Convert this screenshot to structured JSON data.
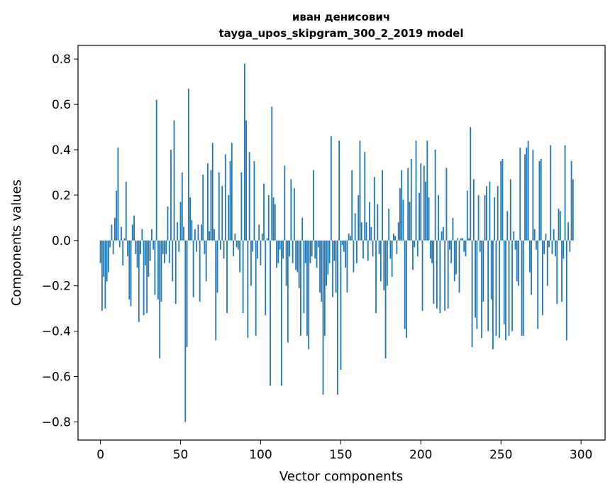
{
  "chart_data": {
    "type": "bar",
    "title_lines": [
      "иван денисович",
      "tayga_upos_skipgram_300_2_2019 model"
    ],
    "xlabel": "Vector components",
    "ylabel": "Components values",
    "xlim": [
      -14,
      315
    ],
    "ylim": [
      -0.88,
      0.86
    ],
    "xticks": [
      0,
      50,
      100,
      150,
      200,
      250,
      300
    ],
    "xtick_labels": [
      "0",
      "50",
      "100",
      "150",
      "200",
      "250",
      "300"
    ],
    "yticks": [
      0.8,
      0.6,
      0.4,
      0.2,
      0.0,
      -0.2,
      -0.4,
      -0.6,
      -0.8
    ],
    "ytick_labels": [
      "0.8",
      "0.6",
      "0.4",
      "0.2",
      "0.0",
      "−0.2",
      "−0.4",
      "−0.6",
      "−0.8"
    ],
    "grid": false,
    "bar_color": "#1f77b4",
    "values": [
      -0.1,
      -0.31,
      -0.16,
      -0.3,
      -0.18,
      -0.14,
      -0.03,
      0.07,
      -0.06,
      0.1,
      0.22,
      0.41,
      -0.03,
      0.06,
      -0.11,
      0.01,
      0.26,
      -0.07,
      -0.26,
      -0.29,
      0.07,
      0.11,
      -0.06,
      -0.12,
      -0.36,
      -0.06,
      0.05,
      -0.33,
      -0.11,
      -0.32,
      -0.16,
      -0.09,
      0.05,
      -0.04,
      -0.24,
      0.62,
      -0.26,
      -0.52,
      -0.27,
      -0.06,
      -0.1,
      -0.06,
      0.15,
      -0.1,
      0.4,
      -0.18,
      0.53,
      -0.28,
      0.08,
      -0.05,
      0.17,
      0.3,
      0.06,
      -0.8,
      -0.47,
      0.67,
      0.19,
      0.09,
      -0.25,
      0.05,
      -0.05,
      0.07,
      -0.27,
      0.07,
      0.29,
      -0.06,
      -0.18,
      0.34,
      0.04,
      0.31,
      0.43,
      0.05,
      -0.44,
      -0.23,
      0.3,
      -0.04,
      0.24,
      -0.08,
      0.38,
      -0.32,
      0.2,
      0.35,
      0.43,
      -0.07,
      0.03,
      -0.03,
      -0.04,
      -0.14,
      0.3,
      -0.32,
      0.78,
      0.53,
      -0.43,
      0.39,
      -0.2,
      -0.05,
      0.35,
      -0.42,
      -0.08,
      0.07,
      -0.11,
      0.03,
      0.25,
      -0.33,
      0.01,
      0.2,
      -0.64,
      0.59,
      0.19,
      0.16,
      -0.12,
      -0.1,
      -0.04,
      -0.64,
      -0.08,
      0.33,
      -0.2,
      -0.45,
      -0.07,
      0.27,
      -0.1,
      0.23,
      -0.13,
      -0.14,
      -0.21,
      -0.42,
      0.1,
      -0.32,
      -0.1,
      -0.42,
      -0.48,
      -0.1,
      -0.07,
      0.31,
      -0.08,
      -0.12,
      -0.03,
      -0.23,
      -0.27,
      -0.68,
      -0.42,
      -0.2,
      -0.15,
      -0.1,
      0.46,
      -0.25,
      -0.09,
      -0.23,
      -0.68,
      0.44,
      -0.57,
      -0.02,
      -0.05,
      -0.12,
      -0.23,
      0.03,
      0.02,
      0.31,
      -0.14,
      0.12,
      -0.1,
      0.2,
      0.44,
      0.08,
      -0.08,
      0.39,
      0.08,
      -0.09,
      0.17,
      0.06,
      -0.07,
      0.28,
      -0.32,
      0.16,
      -0.06,
      -0.18,
      0.31,
      -0.22,
      -0.52,
      -0.2,
      0.14,
      -0.08,
      -0.16,
      0.03,
      0.02,
      -0.06,
      0.08,
      0.23,
      0.31,
      0.18,
      -0.39,
      -0.43,
      0.32,
      0.17,
      0.36,
      -0.13,
      -0.03,
      0.44,
      -0.07,
      0.21,
      0.34,
      -0.31,
      0.33,
      0.26,
      0.44,
      0.19,
      -0.08,
      -0.1,
      -0.28,
      0.4,
      -0.3,
      0.2,
      -0.32,
      0.04,
      0.06,
      -0.31,
      0.32,
      -0.3,
      -0.04,
      -0.1,
      0.1,
      -0.18,
      -0.15,
      0.01,
      -0.23,
      0.01,
      0.01,
      -0.05,
      -0.07,
      0.22,
      0.01,
      0.5,
      -0.47,
      0.27,
      -0.34,
      -0.39,
      0.2,
      -0.05,
      -0.43,
      -0.27,
      0.2,
      0.24,
      -0.4,
      0.26,
      -0.26,
      -0.48,
      0.19,
      -0.42,
      0.24,
      -0.43,
      0.35,
      0.36,
      -0.37,
      -0.44,
      0.13,
      -0.42,
      0.27,
      -0.4,
      0.04,
      -0.04,
      -0.18,
      -0.2,
      0.41,
      -0.42,
      -0.42,
      0.38,
      0.41,
      0.44,
      -0.14,
      -0.24,
      0.4,
      0.05,
      -0.04,
      -0.39,
      0.35,
      0.36,
      -0.33,
      -0.06,
      0.03,
      -0.2,
      -0.03,
      0.42,
      -0.06,
      0.05,
      -0.07,
      -0.28,
      0.14,
      0.13,
      -0.27,
      -0.08,
      0.42,
      -0.44,
      0.08,
      -0.05,
      0.35,
      0.27
    ]
  }
}
